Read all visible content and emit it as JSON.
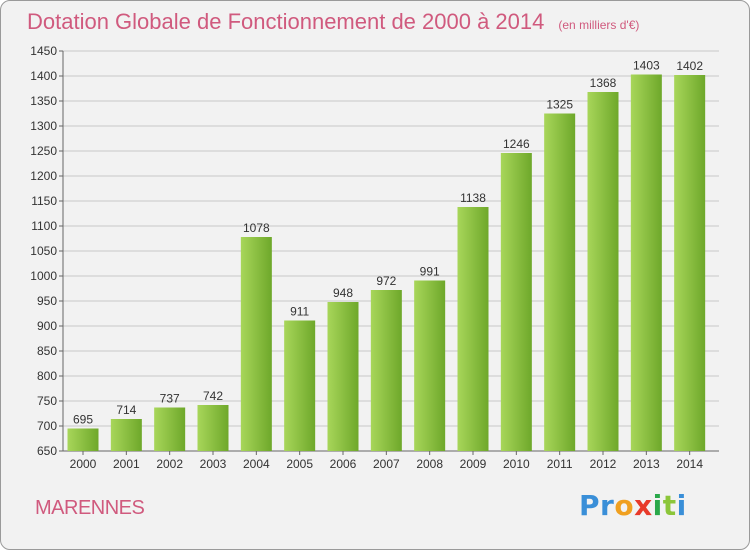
{
  "title": "Dotation Globale de Fonctionnement de 2000 à 2014",
  "unit_note": "(en milliers d'€)",
  "city": "MARENNES",
  "logo": {
    "letters": [
      "P",
      "r",
      "o",
      "x",
      "i",
      "t",
      "i"
    ],
    "colors": [
      "#3a8fd8",
      "#3a8fd8",
      "#f0a020",
      "#e83a2a",
      "#2aa84a",
      "#8cc63a",
      "#3a8fd8"
    ]
  },
  "colors": {
    "bar_light": "#a8d65a",
    "bar_dark": "#6ea82a",
    "title": "#d05a7e",
    "grid": "#c8c8c8"
  },
  "chart_data": {
    "type": "bar",
    "categories": [
      "2000",
      "2001",
      "2002",
      "2003",
      "2004",
      "2005",
      "2006",
      "2007",
      "2008",
      "2009",
      "2010",
      "2011",
      "2012",
      "2013",
      "2014"
    ],
    "values": [
      695,
      714,
      737,
      742,
      1078,
      911,
      948,
      972,
      991,
      1138,
      1246,
      1325,
      1368,
      1403,
      1402
    ],
    "yticks": [
      650,
      700,
      750,
      800,
      850,
      900,
      950,
      1000,
      1050,
      1100,
      1150,
      1200,
      1250,
      1300,
      1350,
      1400,
      1450
    ],
    "ylim": [
      650,
      1450
    ],
    "grid": true,
    "title": "Dotation Globale de Fonctionnement de 2000 à 2014",
    "xlabel": "",
    "ylabel": ""
  }
}
